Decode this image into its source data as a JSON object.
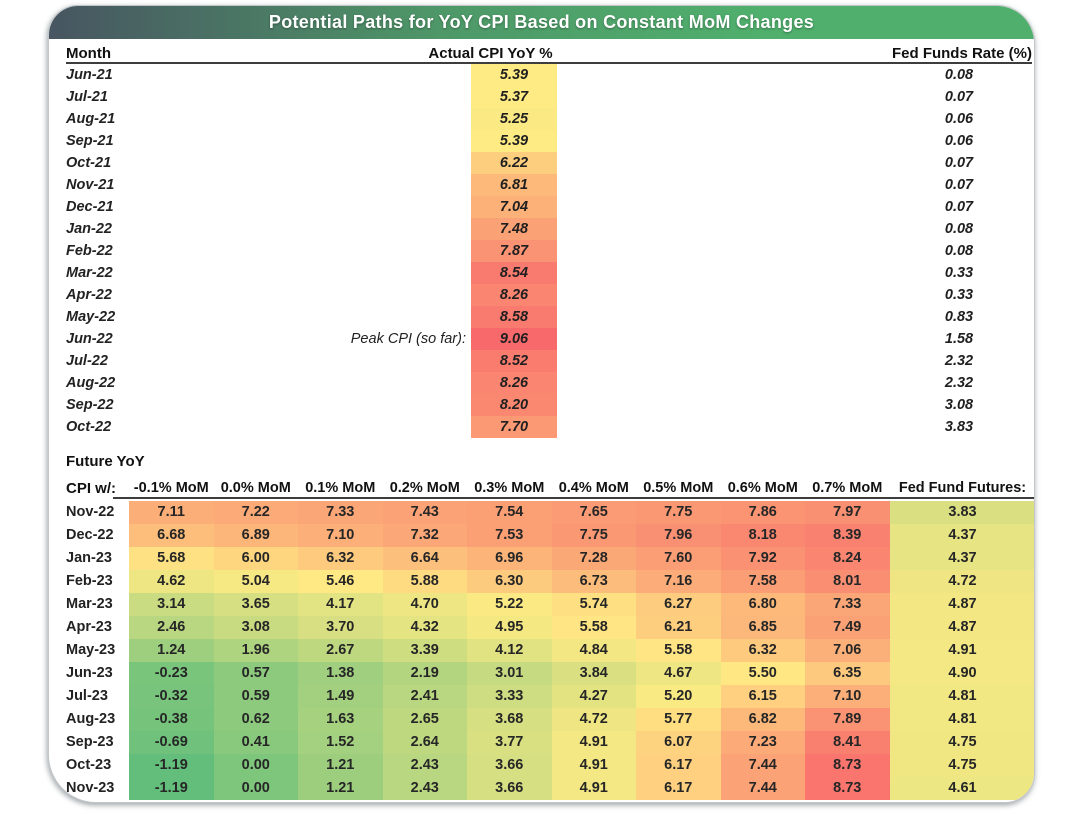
{
  "chart_data": {
    "type": "heatmap",
    "title": "Potential Paths for YoY CPI Based on Constant MoM Changes",
    "title_gradient": {
      "left": "#475561",
      "mid": "#4E9868",
      "right": "#50AF6D"
    },
    "color_scale": {
      "min_value": -1.19,
      "mid_value": 5.4,
      "max_value": 9.06,
      "min_color": "#63BE7B",
      "mid_color": "#FFEB84",
      "max_color": "#F8696B"
    },
    "actual": {
      "headers": {
        "month": "Month",
        "cpi": "Actual CPI YoY %",
        "fed": "Fed Funds Rate (%)"
      },
      "peak_annotation": {
        "month": "Jun-22",
        "label": "Peak CPI (so far):",
        "value": 9.06
      },
      "rows": [
        {
          "month": "Jun-21",
          "cpi": 5.39,
          "fed": 0.08
        },
        {
          "month": "Jul-21",
          "cpi": 5.37,
          "fed": 0.07
        },
        {
          "month": "Aug-21",
          "cpi": 5.25,
          "fed": 0.06
        },
        {
          "month": "Sep-21",
          "cpi": 5.39,
          "fed": 0.06
        },
        {
          "month": "Oct-21",
          "cpi": 6.22,
          "fed": 0.07
        },
        {
          "month": "Nov-21",
          "cpi": 6.81,
          "fed": 0.07
        },
        {
          "month": "Dec-21",
          "cpi": 7.04,
          "fed": 0.07
        },
        {
          "month": "Jan-22",
          "cpi": 7.48,
          "fed": 0.08
        },
        {
          "month": "Feb-22",
          "cpi": 7.87,
          "fed": 0.08
        },
        {
          "month": "Mar-22",
          "cpi": 8.54,
          "fed": 0.33
        },
        {
          "month": "Apr-22",
          "cpi": 8.26,
          "fed": 0.33
        },
        {
          "month": "May-22",
          "cpi": 8.58,
          "fed": 0.83
        },
        {
          "month": "Jun-22",
          "cpi": 9.06,
          "fed": 1.58
        },
        {
          "month": "Jul-22",
          "cpi": 8.52,
          "fed": 2.32
        },
        {
          "month": "Aug-22",
          "cpi": 8.26,
          "fed": 2.32
        },
        {
          "month": "Sep-22",
          "cpi": 8.2,
          "fed": 3.08
        },
        {
          "month": "Oct-22",
          "cpi": 7.7,
          "fed": 3.83
        }
      ]
    },
    "projections": {
      "section_label_line1": "Future YoY",
      "section_label_line2": "CPI w/:",
      "mom_scenarios": [
        "-0.1% MoM",
        "0.0% MoM",
        "0.1% MoM",
        "0.2% MoM",
        "0.3% MoM",
        "0.4% MoM",
        "0.5% MoM",
        "0.6% MoM",
        "0.7% MoM"
      ],
      "fed_fund_futures_header": "Fed Fund Futures:",
      "series": [
        {
          "month": "Nov-22",
          "values": [
            7.11,
            7.22,
            7.33,
            7.43,
            7.54,
            7.65,
            7.75,
            7.86,
            7.97
          ],
          "fed_fund_futures": 3.83
        },
        {
          "month": "Dec-22",
          "values": [
            6.68,
            6.89,
            7.1,
            7.32,
            7.53,
            7.75,
            7.96,
            8.18,
            8.39
          ],
          "fed_fund_futures": 4.37
        },
        {
          "month": "Jan-23",
          "values": [
            5.68,
            6.0,
            6.32,
            6.64,
            6.96,
            7.28,
            7.6,
            7.92,
            8.24
          ],
          "fed_fund_futures": 4.37
        },
        {
          "month": "Feb-23",
          "values": [
            4.62,
            5.04,
            5.46,
            5.88,
            6.3,
            6.73,
            7.16,
            7.58,
            8.01
          ],
          "fed_fund_futures": 4.72
        },
        {
          "month": "Mar-23",
          "values": [
            3.14,
            3.65,
            4.17,
            4.7,
            5.22,
            5.74,
            6.27,
            6.8,
            7.33
          ],
          "fed_fund_futures": 4.87
        },
        {
          "month": "Apr-23",
          "values": [
            2.46,
            3.08,
            3.7,
            4.32,
            4.95,
            5.58,
            6.21,
            6.85,
            7.49
          ],
          "fed_fund_futures": 4.87
        },
        {
          "month": "May-23",
          "values": [
            1.24,
            1.96,
            2.67,
            3.39,
            4.12,
            4.84,
            5.58,
            6.32,
            7.06
          ],
          "fed_fund_futures": 4.91
        },
        {
          "month": "Jun-23",
          "values": [
            -0.23,
            0.57,
            1.38,
            2.19,
            3.01,
            3.84,
            4.67,
            5.5,
            6.35
          ],
          "fed_fund_futures": 4.9
        },
        {
          "month": "Jul-23",
          "values": [
            -0.32,
            0.59,
            1.49,
            2.41,
            3.33,
            4.27,
            5.2,
            6.15,
            7.1
          ],
          "fed_fund_futures": 4.81
        },
        {
          "month": "Aug-23",
          "values": [
            -0.38,
            0.62,
            1.63,
            2.65,
            3.68,
            4.72,
            5.77,
            6.82,
            7.89
          ],
          "fed_fund_futures": 4.81
        },
        {
          "month": "Sep-23",
          "values": [
            -0.69,
            0.41,
            1.52,
            2.64,
            3.77,
            4.91,
            6.07,
            7.23,
            8.41
          ],
          "fed_fund_futures": 4.75
        },
        {
          "month": "Oct-23",
          "values": [
            -1.19,
            0.0,
            1.21,
            2.43,
            3.66,
            4.91,
            6.17,
            7.44,
            8.73
          ],
          "fed_fund_futures": 4.75
        },
        {
          "month": "Nov-23",
          "values": [
            -1.19,
            0.0,
            1.21,
            2.43,
            3.66,
            4.91,
            6.17,
            7.44,
            8.73
          ],
          "fed_fund_futures": 4.61
        }
      ]
    }
  }
}
